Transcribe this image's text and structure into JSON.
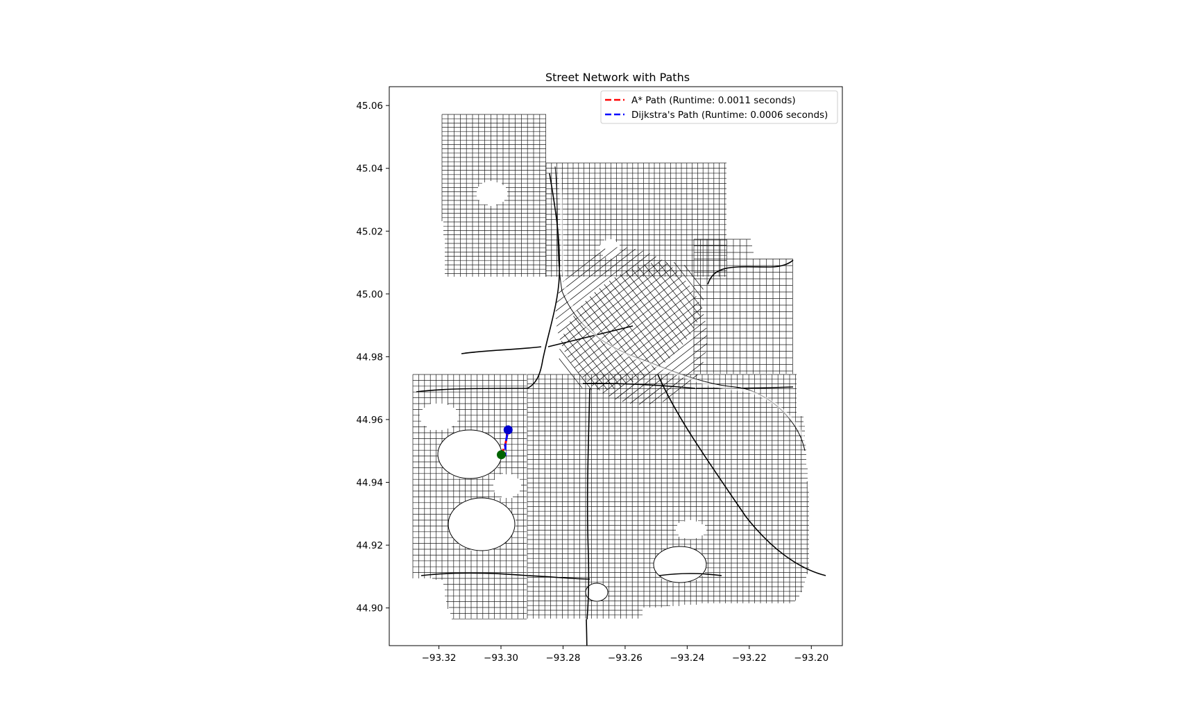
{
  "chart_data": {
    "type": "map",
    "title": "Street Network with Paths",
    "xlabel": "",
    "ylabel": "",
    "xlim": [
      -93.336,
      -93.19
    ],
    "ylim": [
      44.888,
      45.066
    ],
    "x_ticks": [
      {
        "value": -93.32,
        "label": "−93.32"
      },
      {
        "value": -93.3,
        "label": "−93.30"
      },
      {
        "value": -93.28,
        "label": "−93.28"
      },
      {
        "value": -93.26,
        "label": "−93.26"
      },
      {
        "value": -93.24,
        "label": "−93.24"
      },
      {
        "value": -93.22,
        "label": "−93.22"
      },
      {
        "value": -93.2,
        "label": "−93.20"
      }
    ],
    "y_ticks": [
      {
        "value": 44.9,
        "label": "44.90"
      },
      {
        "value": 44.92,
        "label": "44.92"
      },
      {
        "value": 44.94,
        "label": "44.94"
      },
      {
        "value": 44.96,
        "label": "44.96"
      },
      {
        "value": 44.98,
        "label": "44.98"
      },
      {
        "value": 45.0,
        "label": "45.00"
      },
      {
        "value": 45.02,
        "label": "45.02"
      },
      {
        "value": 45.04,
        "label": "45.04"
      },
      {
        "value": 45.06,
        "label": "45.06"
      }
    ],
    "grid": false,
    "legend_position": "top-right",
    "background_color": "#ffffff",
    "network_color": "#000000",
    "series": [
      {
        "name": "A* Path (Runtime: 0.0011 seconds)",
        "color": "#ff0000",
        "style": "dashed",
        "points": [
          [
            -93.2999,
            44.9488
          ],
          [
            -93.2986,
            44.952
          ],
          [
            -93.2977,
            44.9567
          ]
        ]
      },
      {
        "name": "Dijkstra's Path (Runtime: 0.0006 seconds)",
        "color": "#0000ff",
        "style": "dashed",
        "points": [
          [
            -93.2999,
            44.9488
          ],
          [
            -93.2986,
            44.9488
          ],
          [
            -93.2986,
            44.952
          ],
          [
            -93.2977,
            44.9567
          ]
        ]
      }
    ],
    "markers": [
      {
        "role": "start",
        "color": "#006400",
        "point": [
          -93.2999,
          44.9488
        ]
      },
      {
        "role": "end",
        "color": "#0000cd",
        "point": [
          -93.2977,
          44.9567
        ]
      }
    ]
  }
}
